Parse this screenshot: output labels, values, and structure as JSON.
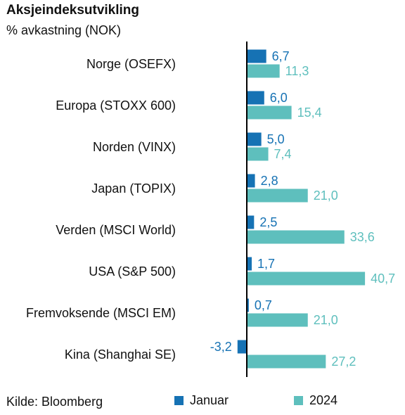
{
  "title": "Aksjeindeksutvikling",
  "subtitle": "% avkastning (NOK)",
  "source": "Kilde: Bloomberg",
  "colors": {
    "januar": "#1672b4",
    "y2024": "#5ebfbd",
    "axis": "#000000"
  },
  "chart_data": {
    "type": "bar",
    "orientation": "horizontal",
    "categories": [
      "Norge (OSEFX)",
      "Europa (STOXX 600)",
      "Norden (VINX)",
      "Japan (TOPIX)",
      "Verden (MSCI World)",
      "USA (S&P 500)",
      "Fremvoksende (MSCI EM)",
      "Kina (Shanghai SE)"
    ],
    "series": [
      {
        "name": "Januar",
        "values": [
          6.7,
          6.0,
          5.0,
          2.8,
          2.5,
          1.7,
          0.7,
          -3.2
        ],
        "labels": [
          "6,7",
          "6,0",
          "5,0",
          "2,8",
          "2,5",
          "1,7",
          "0,7",
          "-3,2"
        ]
      },
      {
        "name": "2024",
        "values": [
          11.3,
          15.4,
          7.4,
          21.0,
          33.6,
          40.7,
          21.0,
          27.2
        ],
        "labels": [
          "11,3",
          "15,4",
          "7,4",
          "21,0",
          "33,6",
          "40,7",
          "21,0",
          "27,2"
        ]
      }
    ],
    "xlim": [
      -3.2,
      40.7
    ],
    "grid": false,
    "legend": "bottom"
  }
}
